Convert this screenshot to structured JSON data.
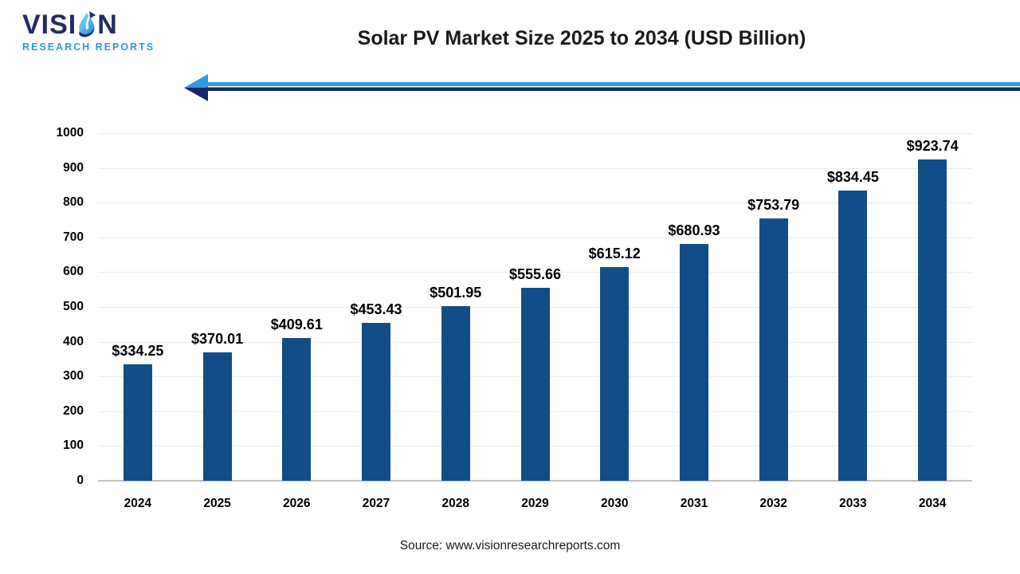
{
  "brand": {
    "line1_prefix": "VISI",
    "line1_suffix": "N",
    "line2": "RESEARCH REPORTS"
  },
  "header": {
    "title": "Solar PV Market Size 2025 to 2034 (USD Billion)"
  },
  "chart_data": {
    "type": "bar",
    "title": "Solar PV Market Size 2025 to 2034 (USD Billion)",
    "categories": [
      "2024",
      "2025",
      "2026",
      "2027",
      "2028",
      "2029",
      "2030",
      "2031",
      "2032",
      "2033",
      "2034"
    ],
    "values": [
      334.25,
      370.01,
      409.61,
      453.43,
      501.95,
      555.66,
      615.12,
      680.93,
      753.79,
      834.45,
      923.74
    ],
    "value_labels": [
      "$334.25",
      "$370.01",
      "$409.61",
      "$453.43",
      "$501.95",
      "$555.66",
      "$615.12",
      "$680.93",
      "$753.79",
      "$834.45",
      "$923.74"
    ],
    "xlabel": "",
    "ylabel": "",
    "ylim": [
      0,
      1000
    ],
    "yticks": [
      0,
      100,
      200,
      300,
      400,
      500,
      600,
      700,
      800,
      900,
      1000
    ],
    "grid": true,
    "legend": "none"
  },
  "footer": {
    "source": "Source: www.visionresearchreports.com"
  },
  "colors": {
    "bar": "#134D87",
    "logo_navy": "#232B60",
    "logo_light_blue": "#2E9AD8",
    "arrow_light": "#2E9BDE",
    "arrow_dark": "#16265E",
    "grid": "#E9EBEC",
    "axis": "#BFBFBF"
  }
}
